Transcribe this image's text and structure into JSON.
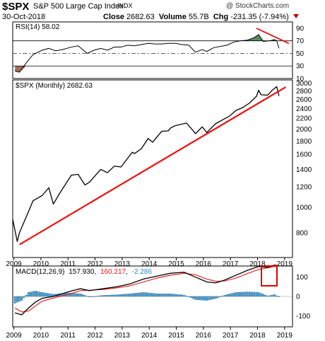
{
  "header": {
    "symbol": "$SPX",
    "name": "S&P 500 Large Cap Index",
    "exchange": "INDX",
    "watermark": "@ StockCharts.com",
    "date": "30-Oct-2018",
    "close_label": "Close",
    "close_value": "2682.63",
    "volume_label": "Volume",
    "volume_value": "55.7B",
    "chg_label": "Chg",
    "chg_value": "-231.35 (-7.94%)"
  },
  "colors": {
    "price": "#000000",
    "trendline": "#ee1111",
    "rsi_fill": "#5d8a5d",
    "rsi_lower_fill": "#a86a5a",
    "macd": "#000000",
    "signal": "#ee1111",
    "histogram": "#4d9ed0",
    "highlight": "#dd0000"
  },
  "chart_data": [
    {
      "type": "line",
      "panel": "rsi",
      "label": "RSI(14) 58.02",
      "ylim": [
        10,
        100
      ],
      "yticks": [
        10,
        30,
        50,
        70,
        90
      ],
      "levels": [
        70,
        30,
        50
      ],
      "x": [
        "2009-01",
        "2009-03",
        "2009-06",
        "2009-09",
        "2010-01",
        "2010-04",
        "2010-07",
        "2010-10",
        "2011-02",
        "2011-05",
        "2011-09",
        "2011-12",
        "2012-03",
        "2012-06",
        "2012-09",
        "2012-12",
        "2013-03",
        "2013-06",
        "2013-09",
        "2013-12",
        "2014-03",
        "2014-06",
        "2014-09",
        "2014-12",
        "2015-03",
        "2015-06",
        "2015-09",
        "2015-12",
        "2016-02",
        "2016-05",
        "2016-08",
        "2016-11",
        "2017-02",
        "2017-05",
        "2017-08",
        "2017-11",
        "2018-01",
        "2018-03",
        "2018-06",
        "2018-08",
        "2018-09",
        "2018-10"
      ],
      "values": [
        22,
        20,
        35,
        48,
        55,
        58,
        54,
        56,
        60,
        62,
        50,
        55,
        58,
        55,
        60,
        60,
        63,
        62,
        64,
        66,
        65,
        65,
        66,
        66,
        64,
        63,
        52,
        56,
        53,
        59,
        61,
        63,
        68,
        70,
        71,
        75,
        80,
        69,
        70,
        72,
        70,
        58
      ]
    },
    {
      "type": "line",
      "panel": "price",
      "label": "$SPX (Monthly) 2682.63",
      "log_scale": true,
      "ylim": [
        650,
        3050
      ],
      "yticks": [
        800,
        1000,
        1200,
        1400,
        1600,
        1800,
        2000,
        2200,
        2400,
        2600,
        2800,
        3000
      ],
      "x": [
        "2008-12",
        "2009-02",
        "2009-03",
        "2009-06",
        "2009-09",
        "2010-01",
        "2010-04",
        "2010-06",
        "2010-09",
        "2011-02",
        "2011-05",
        "2011-08",
        "2011-10",
        "2012-03",
        "2012-06",
        "2012-09",
        "2012-12",
        "2013-05",
        "2013-06",
        "2013-09",
        "2013-12",
        "2014-02",
        "2014-06",
        "2014-09",
        "2014-10",
        "2014-12",
        "2015-05",
        "2015-08",
        "2015-09",
        "2015-12",
        "2016-02",
        "2016-06",
        "2016-09",
        "2016-12",
        "2017-03",
        "2017-06",
        "2017-09",
        "2017-12",
        "2018-01",
        "2018-02",
        "2018-05",
        "2018-07",
        "2018-09",
        "2018-10"
      ],
      "values": [
        900,
        740,
        800,
        920,
        1060,
        1110,
        1190,
        1030,
        1140,
        1330,
        1340,
        1220,
        1250,
        1400,
        1360,
        1440,
        1430,
        1630,
        1610,
        1680,
        1840,
        1780,
        1960,
        1970,
        2020,
        2060,
        2110,
        1970,
        1920,
        2040,
        1940,
        2100,
        2170,
        2240,
        2360,
        2420,
        2520,
        2670,
        2820,
        2710,
        2700,
        2820,
        2910,
        2682
      ]
    },
    {
      "type": "line",
      "panel": "trendlines",
      "series": [
        {
          "x": [
            "2009-03",
            "2019-01"
          ],
          "values": [
            720,
            2900
          ]
        },
        {
          "x": [
            "2017-12",
            "2018-10"
          ],
          "values": [
            90,
            68
          ]
        }
      ]
    },
    {
      "type": "line",
      "panel": "macd",
      "label_prefix": "MACD(12,26,9)",
      "macd_value": "157.930",
      "signal_value": "160.217",
      "hist_value": "-2.286",
      "ylim": [
        -150,
        150
      ],
      "yticks": [
        -100,
        0,
        100
      ],
      "x": [
        "2009-01",
        "2009-04",
        "2009-07",
        "2009-10",
        "2010-01",
        "2010-06",
        "2011-01",
        "2011-06",
        "2011-10",
        "2012-04",
        "2012-10",
        "2013-04",
        "2013-10",
        "2014-04",
        "2014-10",
        "2015-04",
        "2015-09",
        "2016-02",
        "2016-06",
        "2016-10",
        "2017-03",
        "2017-08",
        "2018-01",
        "2018-05",
        "2018-08",
        "2018-10"
      ],
      "series": [
        {
          "name": "MACD",
          "values": [
            -85,
            -95,
            -60,
            -30,
            -10,
            0,
            25,
            40,
            30,
            40,
            50,
            65,
            90,
            105,
            120,
            125,
            100,
            75,
            70,
            85,
            110,
            135,
            155,
            150,
            162,
            158
          ]
        },
        {
          "name": "Signal",
          "values": [
            -60,
            -80,
            -75,
            -50,
            -25,
            -8,
            12,
            30,
            32,
            36,
            44,
            55,
            75,
            95,
            110,
            120,
            112,
            90,
            78,
            80,
            95,
            118,
            140,
            148,
            155,
            160
          ]
        }
      ]
    },
    {
      "type": "axis",
      "panel": "x-axis",
      "tick_labels": [
        "2009",
        "2010",
        "2011",
        "2012",
        "2013",
        "2014",
        "2015",
        "2016",
        "2017",
        "2018",
        "2019"
      ]
    }
  ]
}
